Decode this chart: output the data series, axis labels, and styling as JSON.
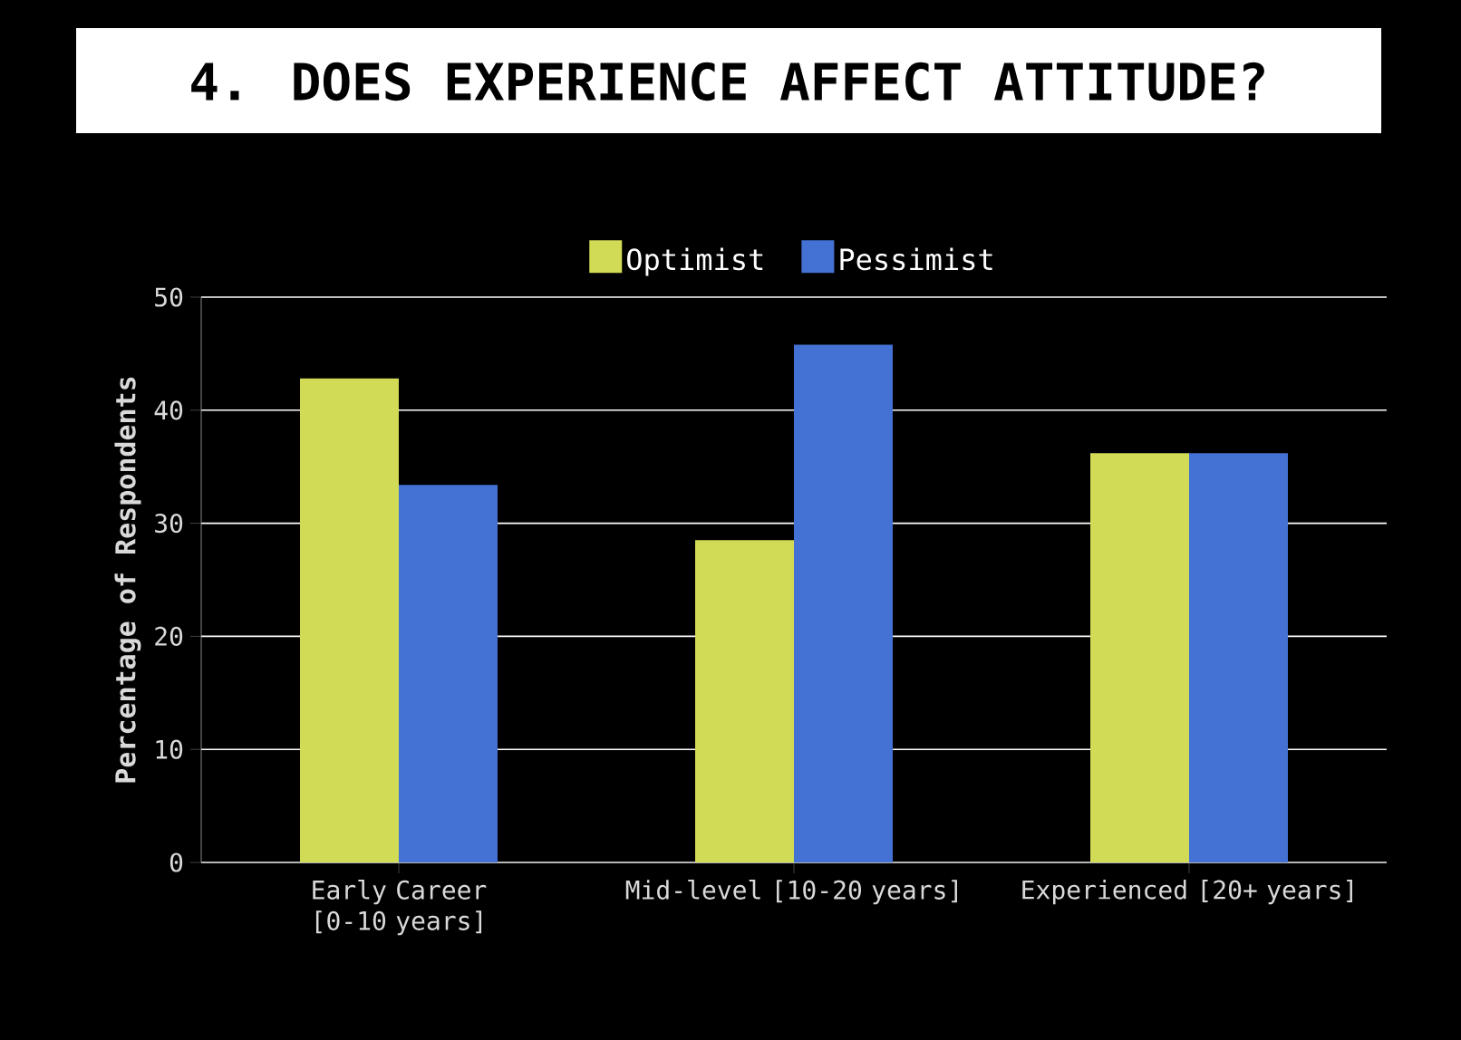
{
  "chart_data": {
    "type": "bar",
    "title": "4. DOES EXPERIENCE AFFECT ATTITUDE?",
    "ylabel": "Percentage of Respondents",
    "categories": [
      "Early Career [0-10 years]",
      "Mid-level [10-20 years]",
      "Experienced [20+ years]"
    ],
    "series": [
      {
        "name": "Optimist",
        "color": "#d2db55",
        "values": [
          42.8,
          28.5,
          36.2
        ]
      },
      {
        "name": "Pessimist",
        "color": "#4472d4",
        "values": [
          33.4,
          45.8,
          36.2
        ]
      }
    ],
    "ylim": [
      0,
      50
    ],
    "yticks": [
      0,
      10,
      20,
      30,
      40,
      50
    ],
    "grid": "y",
    "legend": "top"
  }
}
